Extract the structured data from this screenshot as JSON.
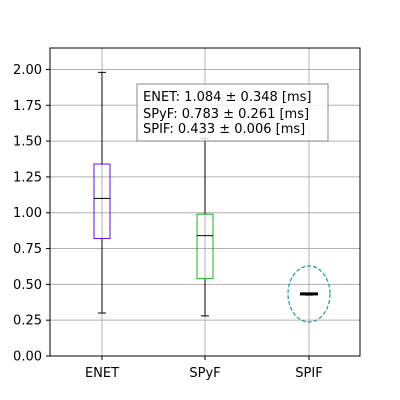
{
  "chart_data": {
    "type": "box",
    "categories": [
      "ENET",
      "SPyF",
      "SPIF"
    ],
    "series": [
      {
        "category": "ENET",
        "min": 0.3,
        "q1": 0.82,
        "median": 1.1,
        "q3": 1.34,
        "max": 1.98,
        "color": "#6a0dcc"
      },
      {
        "category": "SPyF",
        "min": 0.28,
        "q1": 0.54,
        "median": 0.84,
        "q3": 0.99,
        "max": 1.52,
        "color": "#17b317"
      },
      {
        "category": "SPIF",
        "min": 0.425,
        "q1": 0.43,
        "median": 0.433,
        "q3": 0.437,
        "max": 0.44,
        "color": "#000000"
      }
    ],
    "ylim": [
      0,
      2.15
    ],
    "yticks": [
      "0.00",
      "0.25",
      "0.50",
      "0.75",
      "1.00",
      "1.25",
      "1.50",
      "1.75",
      "2.00"
    ],
    "ylabel": "",
    "xlabel": "",
    "title": "",
    "grid": true,
    "legend_placement": "top-center",
    "legend_lines": [
      "ENET: 1.084 ± 0.348 [ms]",
      "SPyF: 0.783 ± 0.261 [ms]",
      "SPIF: 0.433 ± 0.006 [ms]"
    ],
    "highlight": {
      "category": "SPIF",
      "center_value": 0.433,
      "color": "#1a9aa0",
      "style": "dashed-ellipse"
    }
  }
}
